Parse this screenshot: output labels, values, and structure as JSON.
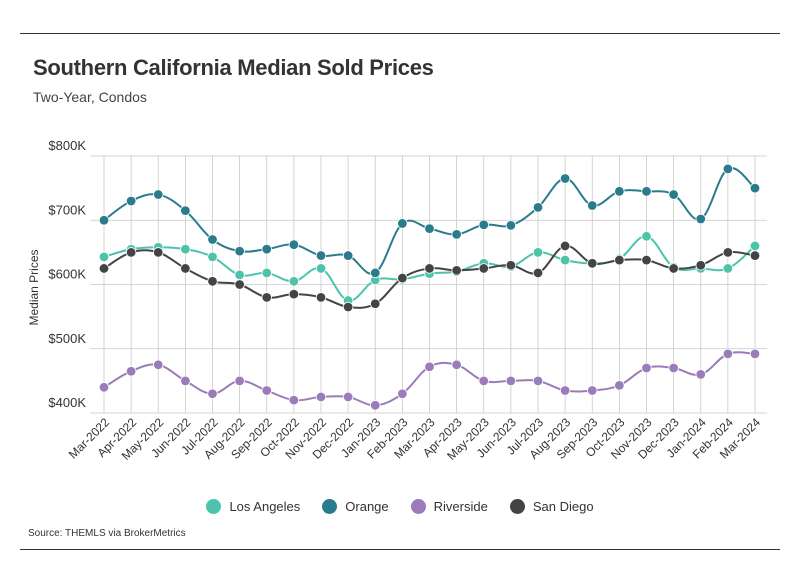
{
  "title": "Southern California Median Sold Prices",
  "subtitle": "Two-Year, Condos",
  "source": "Source:  THEMLS via BrokerMetrics",
  "chart_data": {
    "type": "line",
    "ylabel": "Median Prices",
    "xlabel": "",
    "ylim": [
      400,
      800
    ],
    "yticks": [
      400,
      500,
      600,
      700,
      800
    ],
    "ytick_labels": [
      "$400K",
      "$500K",
      "$600K",
      "$700K",
      "$800K"
    ],
    "grid": true,
    "legend_position": "bottom",
    "categories": [
      "Mar-2022",
      "Apr-2022",
      "May-2022",
      "Jun-2022",
      "Jul-2022",
      "Aug-2022",
      "Sep-2022",
      "Oct-2022",
      "Nov-2022",
      "Dec-2022",
      "Jan-2023",
      "Feb-2023",
      "Mar-2023",
      "Apr-2023",
      "May-2023",
      "Jun-2023",
      "Jul-2023",
      "Aug-2023",
      "Sep-2023",
      "Oct-2023",
      "Nov-2023",
      "Dec-2023",
      "Jan-2024",
      "Feb-2024",
      "Mar-2024"
    ],
    "series": [
      {
        "name": "Los Angeles",
        "color": "#4dc3ab",
        "values": [
          643,
          655,
          658,
          655,
          643,
          615,
          618,
          605,
          625,
          575,
          607,
          608,
          617,
          620,
          633,
          628,
          650,
          638,
          633,
          640,
          675,
          627,
          625,
          625,
          660
        ]
      },
      {
        "name": "Orange",
        "color": "#2a7b8c",
        "values": [
          700,
          730,
          740,
          715,
          670,
          652,
          655,
          662,
          645,
          645,
          618,
          695,
          687,
          678,
          693,
          692,
          720,
          765,
          723,
          745,
          745,
          740,
          702,
          780,
          750
        ]
      },
      {
        "name": "Riverside",
        "color": "#9b7cba",
        "values": [
          440,
          465,
          475,
          450,
          430,
          450,
          435,
          420,
          425,
          425,
          412,
          430,
          472,
          475,
          450,
          450,
          450,
          435,
          435,
          443,
          470,
          470,
          460,
          492,
          492
        ]
      },
      {
        "name": "San Diego",
        "color": "#444444",
        "values": [
          625,
          650,
          650,
          625,
          605,
          600,
          580,
          585,
          580,
          565,
          570,
          610,
          625,
          622,
          625,
          630,
          618,
          660,
          633,
          638,
          638,
          625,
          630,
          650,
          645
        ]
      }
    ]
  }
}
